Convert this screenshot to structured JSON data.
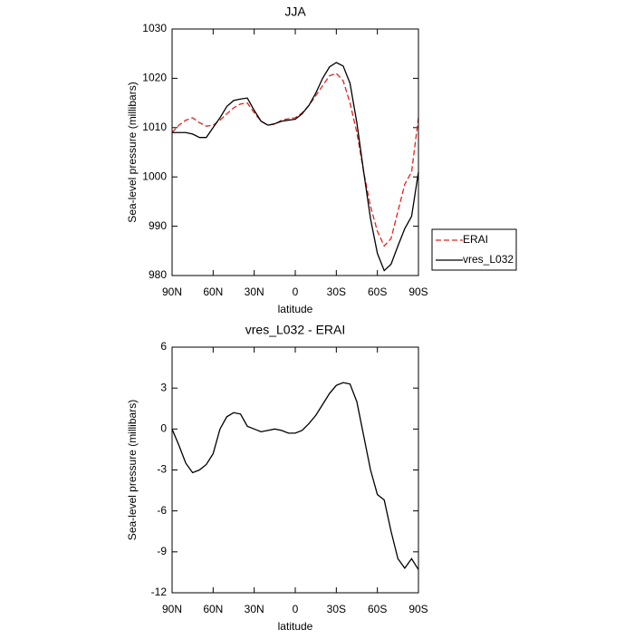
{
  "chart_data": [
    {
      "type": "line",
      "title": "JJA",
      "x_label": "latitude",
      "y_label": "Sea-level pressure (millibars)",
      "x": [
        90,
        85,
        80,
        75,
        70,
        65,
        60,
        55,
        50,
        45,
        40,
        35,
        30,
        25,
        20,
        15,
        10,
        5,
        0,
        -5,
        -10,
        -15,
        -20,
        -25,
        -30,
        -35,
        -40,
        -45,
        -50,
        -55,
        -60,
        -65,
        -70,
        -75,
        -80,
        -85,
        -90
      ],
      "xlim": [
        90,
        -90
      ],
      "xticks": [
        {
          "value": 90,
          "label": "90N"
        },
        {
          "value": 60,
          "label": "60N"
        },
        {
          "value": 30,
          "label": "30N"
        },
        0,
        {
          "value": -30,
          "label": "30S"
        },
        {
          "value": -60,
          "label": "60S"
        },
        {
          "value": -90,
          "label": "90S"
        }
      ],
      "ylim": [
        980,
        1030
      ],
      "yticks": [
        980,
        990,
        1000,
        1010,
        1020,
        1030
      ],
      "legend": "right",
      "series": [
        {
          "name": "ERAI",
          "color": "#e8201c",
          "line_style": "dashed",
          "values": [
            1009,
            1010.5,
            1011.5,
            1012,
            1011,
            1010.3,
            1010.5,
            1011.5,
            1012.8,
            1014,
            1014.8,
            1015,
            1013,
            1011.3,
            1010.5,
            1010.7,
            1011.5,
            1011.8,
            1012,
            1013,
            1014.5,
            1016.5,
            1018.5,
            1020.5,
            1021,
            1019.5,
            1015,
            1009,
            1001,
            994,
            989,
            986,
            987.5,
            993,
            998.5,
            1001,
            1012
          ]
        },
        {
          "name": "vres_L032",
          "color": "#000000",
          "line_style": "solid",
          "values": [
            1009,
            1009,
            1009,
            1008.7,
            1008,
            1008,
            1010,
            1012,
            1014.3,
            1015.5,
            1015.8,
            1016,
            1013.5,
            1011.3,
            1010.5,
            1010.8,
            1011.3,
            1011.5,
            1011.7,
            1012.8,
            1014.5,
            1017,
            1020,
            1022.3,
            1023.2,
            1022.5,
            1019,
            1011,
            1001,
            991.5,
            984.5,
            981,
            982.3,
            986,
            989.5,
            992,
            1001
          ]
        }
      ]
    },
    {
      "type": "line",
      "title": "vres_L032 - ERAI",
      "x_label": "latitude",
      "y_label": "Sea-level pressure (millibars)",
      "x": [
        90,
        85,
        80,
        75,
        70,
        65,
        60,
        55,
        50,
        45,
        40,
        35,
        30,
        25,
        20,
        15,
        10,
        5,
        0,
        -5,
        -10,
        -15,
        -20,
        -25,
        -30,
        -35,
        -40,
        -45,
        -50,
        -55,
        -60,
        -65,
        -70,
        -75,
        -80,
        -85,
        -90
      ],
      "xlim": [
        90,
        -90
      ],
      "xticks": [
        {
          "value": 90,
          "label": "90N"
        },
        {
          "value": 60,
          "label": "60N"
        },
        {
          "value": 30,
          "label": "30N"
        },
        0,
        {
          "value": -30,
          "label": "30S"
        },
        {
          "value": -60,
          "label": "60S"
        },
        {
          "value": -90,
          "label": "90S"
        }
      ],
      "ylim": [
        -12,
        6
      ],
      "yticks": [
        -12,
        -9,
        -6,
        -3,
        0,
        3,
        6
      ],
      "color": "#000000",
      "values": [
        0,
        -1.2,
        -2.5,
        -3.2,
        -3,
        -2.6,
        -1.8,
        0,
        0.9,
        1.2,
        1.1,
        0.2,
        0,
        -0.2,
        -0.1,
        0,
        -0.1,
        -0.3,
        -0.3,
        -0.1,
        0.4,
        1,
        1.8,
        2.6,
        3.2,
        3.4,
        3.3,
        2,
        -0.5,
        -3,
        -4.8,
        -5.2,
        -7.5,
        -9.5,
        -10.2,
        -9.5,
        -10.3
      ]
    }
  ]
}
